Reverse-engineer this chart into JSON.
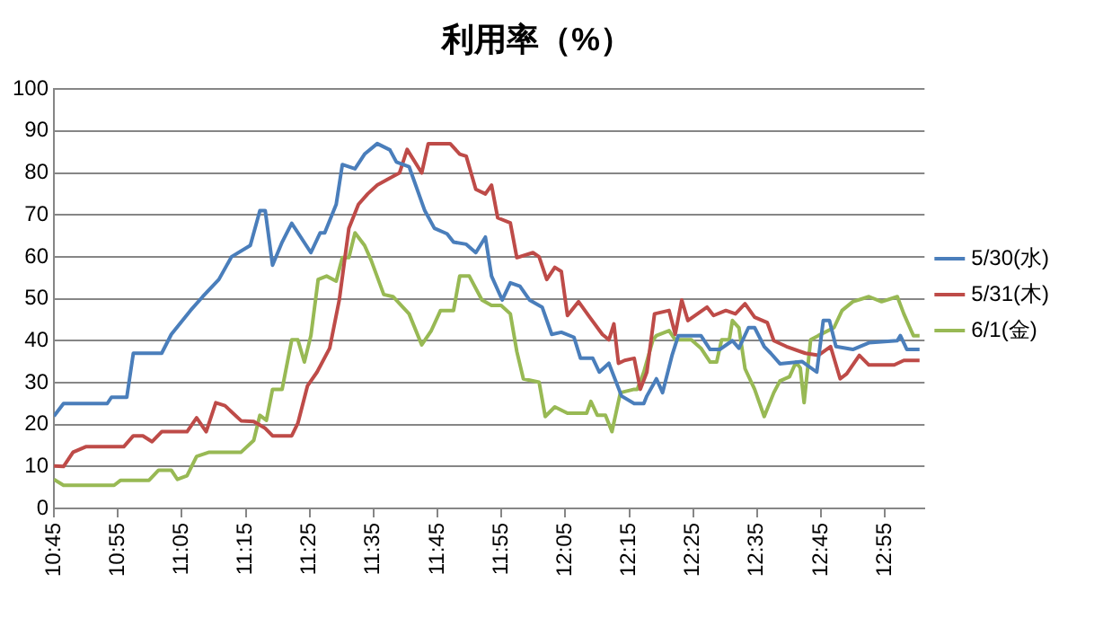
{
  "chart_data": {
    "type": "line",
    "title": "利用率（%）",
    "marker": "none",
    "grid": "y",
    "legend": "right",
    "xlim": [
      10.75,
      13.02
    ],
    "xticks": [
      {
        "value": 10.75,
        "label": "10:45"
      },
      {
        "value": 10.9167,
        "label": "10:55"
      },
      {
        "value": 11.0833,
        "label": "11:05"
      },
      {
        "value": 11.25,
        "label": "11:15"
      },
      {
        "value": 11.4167,
        "label": "11:25"
      },
      {
        "value": 11.5833,
        "label": "11:35"
      },
      {
        "value": 11.75,
        "label": "11:45"
      },
      {
        "value": 11.9167,
        "label": "11:55"
      },
      {
        "value": 12.0833,
        "label": "12:05"
      },
      {
        "value": 12.25,
        "label": "12:15"
      },
      {
        "value": 12.4167,
        "label": "12:25"
      },
      {
        "value": 12.5833,
        "label": "12:35"
      },
      {
        "value": 12.75,
        "label": "12:45"
      },
      {
        "value": 12.9167,
        "label": "12:55"
      }
    ],
    "ylim": [
      0,
      100
    ],
    "yticks": [
      0,
      10,
      20,
      30,
      40,
      50,
      60,
      70,
      80,
      90,
      100
    ],
    "series": [
      {
        "name": "5/30(水)",
        "color": "#4a7ebb",
        "x": [
          10.75,
          10.775,
          10.889,
          10.9,
          10.94,
          10.957,
          11.031,
          11.056,
          11.106,
          11.138,
          11.18,
          11.213,
          11.262,
          11.287,
          11.301,
          11.32,
          11.345,
          11.37,
          11.42,
          11.444,
          11.456,
          11.486,
          11.502,
          11.535,
          11.56,
          11.593,
          11.626,
          11.643,
          11.676,
          11.717,
          11.742,
          11.775,
          11.792,
          11.825,
          11.85,
          11.875,
          11.891,
          11.919,
          11.94,
          11.965,
          11.99,
          12.023,
          12.048,
          12.073,
          12.106,
          12.123,
          12.155,
          12.172,
          12.197,
          12.23,
          12.263,
          12.288,
          12.296,
          12.321,
          12.337,
          12.362,
          12.378,
          12.437,
          12.461,
          12.486,
          12.519,
          12.536,
          12.561,
          12.577,
          12.602,
          12.619,
          12.643,
          12.701,
          12.739,
          12.756,
          12.772,
          12.789,
          12.833,
          12.875,
          12.949,
          12.957,
          12.974,
          13.007
        ],
        "values": [
          22,
          25,
          25,
          26.5,
          26.5,
          37,
          37,
          41.5,
          47.2,
          50.5,
          54.6,
          60,
          62.7,
          71,
          71,
          58,
          63.5,
          68,
          61,
          65.7,
          65.7,
          72.5,
          82,
          81,
          84.5,
          87,
          85.5,
          82.6,
          81.5,
          71,
          66.8,
          65.5,
          63.5,
          63,
          61,
          64.7,
          55.4,
          49.7,
          53.8,
          53,
          49.7,
          48,
          41.5,
          42,
          40.8,
          35.8,
          35.8,
          32.5,
          34.6,
          26.8,
          25,
          25,
          26.8,
          30.9,
          27.6,
          36.6,
          41.2,
          41.2,
          37.9,
          37.9,
          40,
          38.2,
          43.1,
          43.1,
          38.6,
          37,
          34.5,
          35,
          32.5,
          44.8,
          44.8,
          38.6,
          37.9,
          39.5,
          40,
          41.2,
          37.9,
          37.9
        ]
      },
      {
        "name": "5/31(木)",
        "color": "#be4b48",
        "x": [
          10.75,
          10.775,
          10.8,
          10.833,
          10.932,
          10.957,
          10.982,
          11.006,
          11.031,
          11.097,
          11.122,
          11.147,
          11.172,
          11.196,
          11.238,
          11.271,
          11.301,
          11.32,
          11.37,
          11.386,
          11.411,
          11.436,
          11.469,
          11.494,
          11.519,
          11.544,
          11.568,
          11.593,
          11.626,
          11.651,
          11.671,
          11.709,
          11.726,
          11.783,
          11.808,
          11.825,
          11.85,
          11.875,
          11.891,
          11.907,
          11.94,
          11.957,
          11.999,
          12.015,
          12.035,
          12.056,
          12.073,
          12.089,
          12.118,
          12.147,
          12.18,
          12.197,
          12.21,
          12.222,
          12.238,
          12.263,
          12.279,
          12.296,
          12.316,
          12.354,
          12.37,
          12.387,
          12.403,
          12.453,
          12.47,
          12.502,
          12.527,
          12.552,
          12.577,
          12.61,
          12.627,
          12.66,
          12.709,
          12.743,
          12.775,
          12.8,
          12.817,
          12.85,
          12.875,
          12.941,
          12.966,
          13.007
        ],
        "values": [
          10.1,
          10,
          13.4,
          14.7,
          14.7,
          17.3,
          17.3,
          15.9,
          18.3,
          18.3,
          21.6,
          18.3,
          25.2,
          24.5,
          20.9,
          20.7,
          19.1,
          17.3,
          17.3,
          20.3,
          29.2,
          32.5,
          38.2,
          49.7,
          66.8,
          72.5,
          75,
          77.1,
          78.8,
          80,
          85.6,
          80,
          87,
          87,
          84.5,
          84,
          76.1,
          75,
          77.1,
          69.3,
          68.1,
          59.8,
          61,
          60,
          54.6,
          57.5,
          56.5,
          46,
          49.3,
          45.6,
          41.5,
          40.2,
          44,
          34.6,
          35.3,
          35.8,
          28.4,
          32.5,
          46.4,
          47.2,
          41.5,
          49.7,
          44.8,
          48,
          46,
          47.2,
          46.4,
          48.8,
          45.6,
          44.3,
          40,
          38.6,
          37,
          36.5,
          38.6,
          30.9,
          32.1,
          36.5,
          34.2,
          34.2,
          35.3,
          35.3
        ]
      },
      {
        "name": "6/1(金)",
        "color": "#98b954",
        "x": [
          10.75,
          10.775,
          10.907,
          10.924,
          10.998,
          11.023,
          11.056,
          11.072,
          11.097,
          11.122,
          11.155,
          11.238,
          11.271,
          11.287,
          11.304,
          11.32,
          11.345,
          11.37,
          11.386,
          11.403,
          11.42,
          11.439,
          11.461,
          11.486,
          11.502,
          11.519,
          11.535,
          11.56,
          11.577,
          11.61,
          11.634,
          11.676,
          11.709,
          11.734,
          11.758,
          11.792,
          11.808,
          11.833,
          11.866,
          11.891,
          11.916,
          11.94,
          11.957,
          11.974,
          12.015,
          12.031,
          12.056,
          12.089,
          12.139,
          12.15,
          12.167,
          12.188,
          12.205,
          12.227,
          12.263,
          12.271,
          12.288,
          12.312,
          12.321,
          12.354,
          12.37,
          12.412,
          12.437,
          12.461,
          12.478,
          12.491,
          12.511,
          12.519,
          12.536,
          12.552,
          12.577,
          12.602,
          12.627,
          12.643,
          12.668,
          12.685,
          12.696,
          12.706,
          12.723,
          12.743,
          12.784,
          12.805,
          12.833,
          12.875,
          12.908,
          12.949,
          12.966,
          12.991,
          13.007
        ],
        "values": [
          6.9,
          5.5,
          5.5,
          6.7,
          6.7,
          9.1,
          9.1,
          6.9,
          7.8,
          12.4,
          13.4,
          13.4,
          16.2,
          22.2,
          21,
          28.4,
          28.4,
          40.2,
          40.2,
          34.9,
          41.2,
          54.6,
          55.4,
          54.2,
          59.8,
          59.8,
          65.7,
          62.7,
          59.2,
          51,
          50.5,
          46.4,
          39,
          42.4,
          47.2,
          47.2,
          55.4,
          55.4,
          49.7,
          48.4,
          48.4,
          46.4,
          37.4,
          30.9,
          30.1,
          21.9,
          24.2,
          22.7,
          22.7,
          25.5,
          22.2,
          22.2,
          18.3,
          27.6,
          28.4,
          28.4,
          32.5,
          40.2,
          41.2,
          42.4,
          40.2,
          40.2,
          38.2,
          34.9,
          34.9,
          40.2,
          40.2,
          44.8,
          43.1,
          33.3,
          28.4,
          21.9,
          27.6,
          30.4,
          31.4,
          34.9,
          33.5,
          25.2,
          40.2,
          41.2,
          43.1,
          47.2,
          49.3,
          50.5,
          49.3,
          50.5,
          46.4,
          41.2,
          41.2
        ]
      }
    ]
  }
}
